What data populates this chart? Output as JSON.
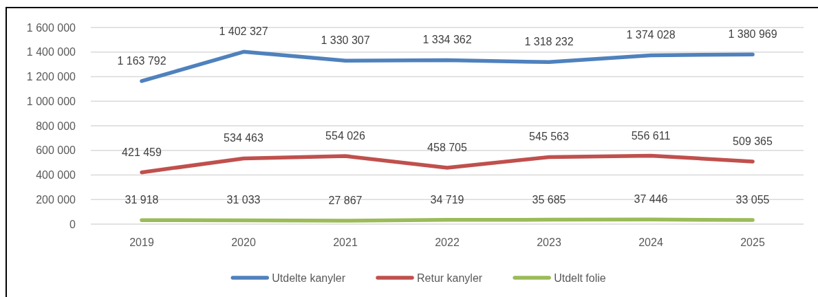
{
  "chart_data": {
    "type": "line",
    "categories": [
      "2019",
      "2020",
      "2021",
      "2022",
      "2023",
      "2024",
      "2025"
    ],
    "series": [
      {
        "name": "Utdelte kanyler",
        "color": "#4f81bd",
        "values": [
          1163792,
          1402327,
          1330307,
          1334362,
          1318232,
          1374028,
          1380969
        ],
        "value_labels": [
          "1 163 792",
          "1 402 327",
          "1 330 307",
          "1 334 362",
          "1 318 232",
          "1 374 028",
          "1 380 969"
        ]
      },
      {
        "name": "Retur kanyler",
        "color": "#c0504d",
        "values": [
          421459,
          534463,
          554026,
          458705,
          545563,
          556611,
          509365
        ],
        "value_labels": [
          "421 459",
          "534 463",
          "554 026",
          "458 705",
          "545 563",
          "556 611",
          "509 365"
        ]
      },
      {
        "name": "Utdelt folie",
        "color": "#9bbb59",
        "values": [
          31918,
          31033,
          27867,
          34719,
          35685,
          37446,
          33055
        ],
        "value_labels": [
          "31 918",
          "31 033",
          "27 867",
          "34 719",
          "35 685",
          "37 446",
          "33 055"
        ]
      }
    ],
    "ylim": [
      0,
      1600000
    ],
    "yticks": [
      {
        "value": 0,
        "label": "0"
      },
      {
        "value": 200000,
        "label": "200 000"
      },
      {
        "value": 400000,
        "label": "400 000"
      },
      {
        "value": 600000,
        "label": "600 000"
      },
      {
        "value": 800000,
        "label": "800 000"
      },
      {
        "value": 1000000,
        "label": "1 000 000"
      },
      {
        "value": 1200000,
        "label": "1 200 000"
      },
      {
        "value": 1400000,
        "label": "1 400 000"
      },
      {
        "value": 1600000,
        "label": "1 600 000"
      }
    ],
    "grid": "y",
    "legend": "bottom"
  }
}
